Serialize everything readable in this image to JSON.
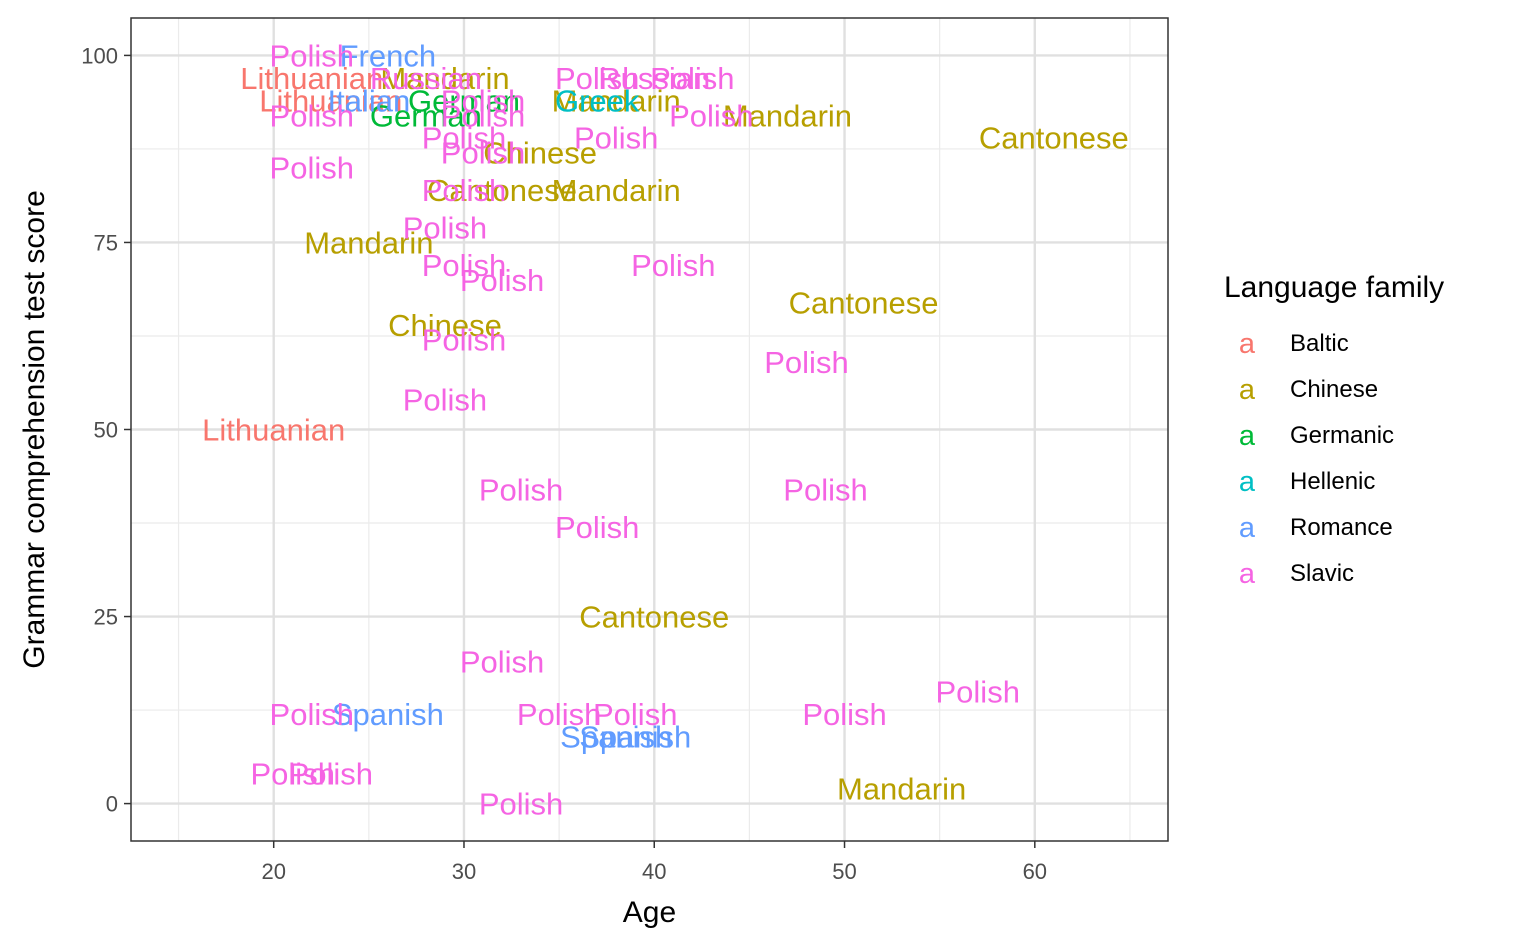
{
  "chart_data": {
    "type": "scatter",
    "title": "",
    "xlabel": "Age",
    "ylabel": "Grammar comprehension test score",
    "xlim": [
      12.5,
      67
    ],
    "ylim": [
      -5,
      105
    ],
    "x_ticks": [
      20,
      30,
      40,
      50,
      60
    ],
    "y_ticks": [
      0,
      25,
      50,
      75,
      100
    ],
    "grid": true,
    "legend": {
      "title": "Language family",
      "position": "right",
      "key_glyph": "a",
      "entries": [
        {
          "name": "Baltic",
          "color": "#F8766D"
        },
        {
          "name": "Chinese",
          "color": "#B79F00"
        },
        {
          "name": "Germanic",
          "color": "#00BA38"
        },
        {
          "name": "Hellenic",
          "color": "#00BFC4"
        },
        {
          "name": "Romance",
          "color": "#619CFF"
        },
        {
          "name": "Slavic",
          "color": "#F564E3"
        }
      ]
    },
    "points": [
      {
        "x": 61,
        "y": 89,
        "label": "Cantonese",
        "family": "Chinese"
      },
      {
        "x": 51,
        "y": 67,
        "label": "Cantonese",
        "family": "Chinese"
      },
      {
        "x": 40,
        "y": 25,
        "label": "Cantonese",
        "family": "Chinese"
      },
      {
        "x": 32,
        "y": 82,
        "label": "Cantonese",
        "family": "Chinese"
      },
      {
        "x": 47,
        "y": 92,
        "label": "Mandarin",
        "family": "Chinese"
      },
      {
        "x": 38,
        "y": 82,
        "label": "Mandarin",
        "family": "Chinese"
      },
      {
        "x": 25,
        "y": 75,
        "label": "Mandarin",
        "family": "Chinese"
      },
      {
        "x": 53,
        "y": 2,
        "label": "Mandarin",
        "family": "Chinese"
      },
      {
        "x": 38,
        "y": 94,
        "label": "Mandarin",
        "family": "Chinese"
      },
      {
        "x": 34,
        "y": 87,
        "label": "Chinese",
        "family": "Chinese"
      },
      {
        "x": 29,
        "y": 64,
        "label": "Chinese",
        "family": "Chinese"
      },
      {
        "x": 29,
        "y": 97,
        "label": "Mandarin",
        "family": "Chinese"
      },
      {
        "x": 20,
        "y": 50,
        "label": "Lithuanian",
        "family": "Baltic"
      },
      {
        "x": 22,
        "y": 97,
        "label": "Lithuanian",
        "family": "Baltic"
      },
      {
        "x": 23,
        "y": 94,
        "label": "Lithuanian",
        "family": "Baltic"
      },
      {
        "x": 28,
        "y": 92,
        "label": "German",
        "family": "Germanic"
      },
      {
        "x": 30,
        "y": 94,
        "label": "German",
        "family": "Germanic"
      },
      {
        "x": 37,
        "y": 94,
        "label": "Greek",
        "family": "Hellenic"
      },
      {
        "x": 26,
        "y": 100,
        "label": "French",
        "family": "Romance"
      },
      {
        "x": 25,
        "y": 94,
        "label": "Italian",
        "family": "Romance"
      },
      {
        "x": 26,
        "y": 12,
        "label": "Spanish",
        "family": "Romance"
      },
      {
        "x": 38,
        "y": 9,
        "label": "Spanish",
        "family": "Romance"
      },
      {
        "x": 39,
        "y": 9,
        "label": "Spanish",
        "family": "Romance"
      },
      {
        "x": 22,
        "y": 100,
        "label": "Polish",
        "family": "Slavic"
      },
      {
        "x": 22,
        "y": 92,
        "label": "Polish",
        "family": "Slavic"
      },
      {
        "x": 22,
        "y": 85,
        "label": "Polish",
        "family": "Slavic"
      },
      {
        "x": 28,
        "y": 97,
        "label": "Russian",
        "family": "Slavic"
      },
      {
        "x": 37,
        "y": 97,
        "label": "Polish",
        "family": "Slavic"
      },
      {
        "x": 40,
        "y": 97,
        "label": "Russian",
        "family": "Slavic"
      },
      {
        "x": 42,
        "y": 97,
        "label": "Polish",
        "family": "Slavic"
      },
      {
        "x": 31,
        "y": 94,
        "label": "Polish",
        "family": "Slavic"
      },
      {
        "x": 31,
        "y": 92,
        "label": "Polish",
        "family": "Slavic"
      },
      {
        "x": 30,
        "y": 89,
        "label": "Polish",
        "family": "Slavic"
      },
      {
        "x": 38,
        "y": 89,
        "label": "Polish",
        "family": "Slavic"
      },
      {
        "x": 43,
        "y": 92,
        "label": "Polish",
        "family": "Slavic"
      },
      {
        "x": 31,
        "y": 87,
        "label": "Polish",
        "family": "Slavic"
      },
      {
        "x": 30,
        "y": 82,
        "label": "Polish",
        "family": "Slavic"
      },
      {
        "x": 29,
        "y": 77,
        "label": "Polish",
        "family": "Slavic"
      },
      {
        "x": 30,
        "y": 72,
        "label": "Polish",
        "family": "Slavic"
      },
      {
        "x": 32,
        "y": 70,
        "label": "Polish",
        "family": "Slavic"
      },
      {
        "x": 41,
        "y": 72,
        "label": "Polish",
        "family": "Slavic"
      },
      {
        "x": 30,
        "y": 62,
        "label": "Polish",
        "family": "Slavic"
      },
      {
        "x": 48,
        "y": 59,
        "label": "Polish",
        "family": "Slavic"
      },
      {
        "x": 29,
        "y": 54,
        "label": "Polish",
        "family": "Slavic"
      },
      {
        "x": 33,
        "y": 42,
        "label": "Polish",
        "family": "Slavic"
      },
      {
        "x": 49,
        "y": 42,
        "label": "Polish",
        "family": "Slavic"
      },
      {
        "x": 37,
        "y": 37,
        "label": "Polish",
        "family": "Slavic"
      },
      {
        "x": 32,
        "y": 19,
        "label": "Polish",
        "family": "Slavic"
      },
      {
        "x": 22,
        "y": 12,
        "label": "Polish",
        "family": "Slavic"
      },
      {
        "x": 35,
        "y": 12,
        "label": "Polish",
        "family": "Slavic"
      },
      {
        "x": 39,
        "y": 12,
        "label": "Polish",
        "family": "Slavic"
      },
      {
        "x": 50,
        "y": 12,
        "label": "Polish",
        "family": "Slavic"
      },
      {
        "x": 57,
        "y": 15,
        "label": "Polish",
        "family": "Slavic"
      },
      {
        "x": 21,
        "y": 4,
        "label": "Polish",
        "family": "Slavic"
      },
      {
        "x": 23,
        "y": 4,
        "label": "Polish",
        "family": "Slavic"
      },
      {
        "x": 33,
        "y": 0,
        "label": "Polish",
        "family": "Slavic"
      }
    ]
  }
}
